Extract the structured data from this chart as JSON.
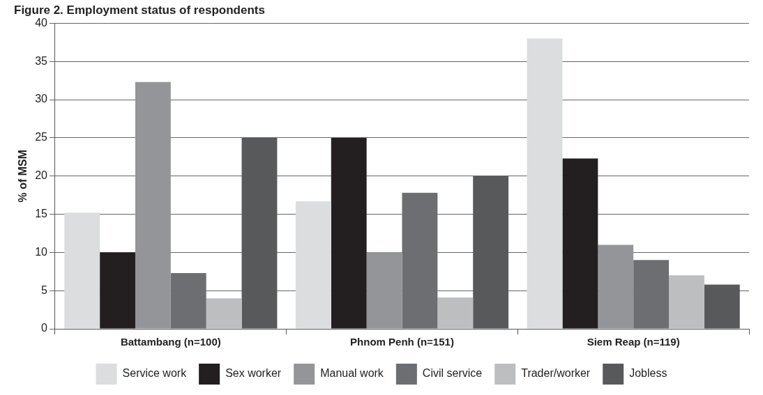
{
  "chart_data": {
    "type": "bar",
    "title": "Figure 2. Employment status of respondents",
    "ylabel": "% of MSM",
    "categories": [
      "Battambang (n=100)",
      "Phnom Penh (n=151)",
      "Siem Reap (n=119)"
    ],
    "series": [
      {
        "name": "Service work",
        "color": "#dcddde",
        "values": [
          15.2,
          16.7,
          38
        ]
      },
      {
        "name": "Sex worker",
        "color": "#231f20",
        "values": [
          10,
          25,
          22.3
        ]
      },
      {
        "name": "Manual work",
        "color": "#939598",
        "values": [
          32.3,
          10,
          11
        ]
      },
      {
        "name": "Civil service",
        "color": "#6d6e71",
        "values": [
          7.3,
          17.8,
          9
        ]
      },
      {
        "name": "Trader/worker",
        "color": "#bcbec0",
        "values": [
          4,
          4.1,
          7
        ]
      },
      {
        "name": "Jobless",
        "color": "#58595b",
        "values": [
          25,
          20,
          5.8
        ]
      }
    ],
    "ylim": [
      0,
      40
    ],
    "yticks": [
      0,
      5,
      10,
      15,
      20,
      25,
      30,
      35,
      40
    ],
    "grid": "y",
    "legend": "bottom"
  }
}
